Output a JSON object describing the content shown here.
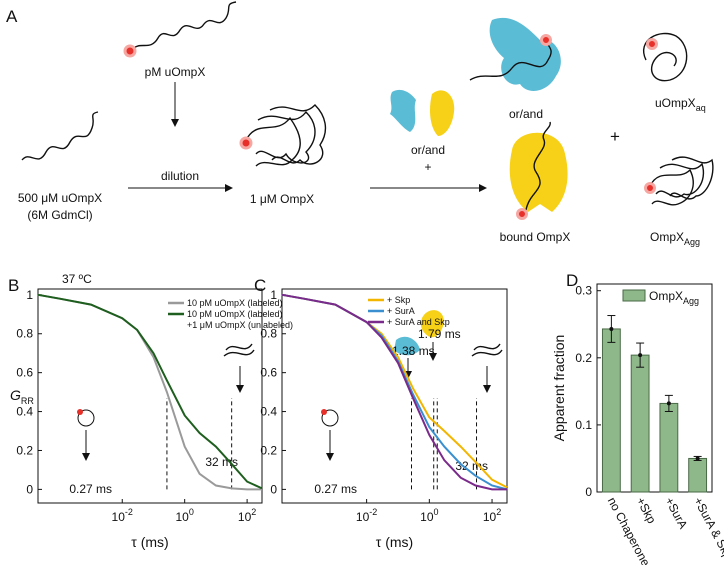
{
  "panel_a": {
    "label": "A",
    "top_chain": "pM uOmpX",
    "stock_line1": "500 μM uOmpX",
    "stock_line2": "(6M GdmCl)",
    "dilution": "dilution",
    "mixture": "1 μM OmpX",
    "or_and_1": "or/and",
    "plus_1": "+",
    "or_and_2": "or/and",
    "plus_2": "+",
    "aq": "uOmpX",
    "aq_sub": "aq",
    "bound": "bound OmpX",
    "agg": "OmpX",
    "agg_sub": "Agg"
  },
  "chart_data": [
    {
      "type": "line",
      "panel": "B",
      "note": "37 ºC",
      "xlabel": "τ (ms)",
      "ylabel": "G",
      "ylabel_sub": "RR",
      "xlog": true,
      "xlim": [
        2e-05,
        300
      ],
      "ylim": [
        -0.07,
        1.03
      ],
      "xticks": [
        {
          "value": 0.01,
          "label": "10",
          "exponent": "-2"
        },
        {
          "value": 1,
          "label": "10",
          "exponent": "0"
        },
        {
          "value": 100,
          "label": "10",
          "exponent": "2"
        }
      ],
      "yticks": [
        0,
        0.2,
        0.4,
        0.6,
        0.8,
        1
      ],
      "x": [
        2e-05,
        0.0001,
        0.001,
        0.01,
        0.03,
        0.1,
        0.27,
        1,
        3,
        10,
        32,
        100,
        300
      ],
      "series": [
        {
          "name": [
            "10 pM uOmpX (labeled)"
          ],
          "color": "#9a9a9a",
          "values": [
            1.0,
            0.98,
            0.95,
            0.88,
            0.82,
            0.68,
            0.5,
            0.22,
            0.08,
            0.02,
            0.005,
            0,
            0
          ]
        },
        {
          "name": [
            "10 pM uOmpX (labeled)",
            "+1 μM uOmpX (unlabeled)"
          ],
          "color": "#1e5e1e",
          "values": [
            1.0,
            0.98,
            0.95,
            0.88,
            0.82,
            0.7,
            0.56,
            0.38,
            0.29,
            0.22,
            0.13,
            0.04,
            0.005
          ]
        }
      ],
      "annotations": [
        {
          "value": 0.27,
          "label": "0.27 ms"
        },
        {
          "value": 32,
          "label": "32 ms"
        }
      ]
    },
    {
      "type": "line",
      "panel": "C",
      "xlabel": "τ (ms)",
      "xlog": true,
      "xlim": [
        2e-05,
        300
      ],
      "ylim": [
        -0.07,
        1.03
      ],
      "xticks": [
        {
          "value": 0.01,
          "label": "10",
          "exponent": "-2"
        },
        {
          "value": 1,
          "label": "10",
          "exponent": "0"
        },
        {
          "value": 100,
          "label": "10",
          "exponent": "2"
        }
      ],
      "yticks": [
        0,
        0.2,
        0.4,
        0.6,
        0.8,
        1
      ],
      "x": [
        2e-05,
        0.0001,
        0.001,
        0.01,
        0.03,
        0.1,
        0.3,
        1,
        3,
        10,
        30,
        100,
        300
      ],
      "series": [
        {
          "name": [
            "+ Skp"
          ],
          "color": "#f2b500",
          "values": [
            1.0,
            0.98,
            0.95,
            0.86,
            0.8,
            0.68,
            0.52,
            0.37,
            0.3,
            0.22,
            0.14,
            0.05,
            0.01
          ]
        },
        {
          "name": [
            "+ SurA"
          ],
          "color": "#3a8fd0",
          "values": [
            1.0,
            0.98,
            0.95,
            0.86,
            0.79,
            0.66,
            0.49,
            0.32,
            0.22,
            0.13,
            0.07,
            0.02,
            0
          ]
        },
        {
          "name": [
            "+ SurA and Skp"
          ],
          "color": "#7a2a8a",
          "values": [
            1.0,
            0.98,
            0.95,
            0.86,
            0.78,
            0.65,
            0.47,
            0.28,
            0.15,
            0.06,
            0.02,
            0,
            0
          ]
        }
      ],
      "annotations": [
        {
          "value": 0.27,
          "label": "0.27 ms"
        },
        {
          "value": 1.38,
          "label": "1.38 ms"
        },
        {
          "value": 1.79,
          "label": "1.79 ms"
        },
        {
          "value": 32,
          "label": "32 ms"
        }
      ]
    },
    {
      "type": "bar",
      "panel": "D",
      "ylabel": "Apparent fraction",
      "categories": [
        "no Chaperone",
        "+Skp",
        "+SurA",
        "+SurA & Skp"
      ],
      "ylim": [
        0,
        0.31
      ],
      "yticks": [
        0,
        0.1,
        0.2,
        0.3
      ],
      "series": [
        {
          "name": "OmpX",
          "name_sub": "Agg",
          "color": "#8fb88a",
          "values": [
            0.243,
            0.204,
            0.132,
            0.05
          ],
          "errors": [
            0.02,
            0.018,
            0.012,
            0.003
          ]
        }
      ]
    }
  ]
}
